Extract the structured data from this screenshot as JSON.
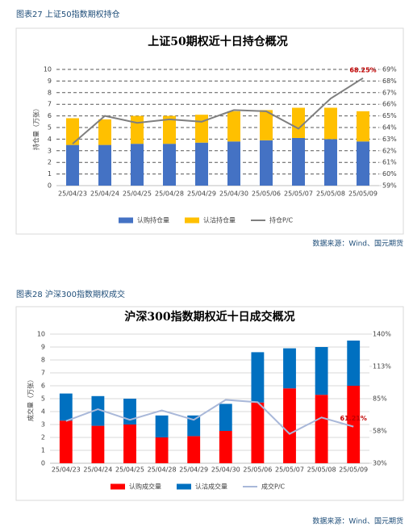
{
  "chart_data": [
    {
      "type": "bar",
      "stacked": true,
      "caption": "图表27 上证50指数期权持仓",
      "title": "上证50期权近十日持仓概况",
      "y_label": "持仓量（万张）",
      "source": "数据来源：Wind、国元期货",
      "categories": [
        "25/04/23",
        "25/04/24",
        "25/04/25",
        "25/04/28",
        "25/04/29",
        "25/04/30",
        "25/05/06",
        "25/05/07",
        "25/05/08",
        "25/05/09"
      ],
      "series": [
        {
          "name": "认购持仓量",
          "color": "#4472c4",
          "values": [
            3.5,
            3.5,
            3.6,
            3.6,
            3.7,
            3.8,
            3.9,
            4.1,
            4.0,
            3.8
          ]
        },
        {
          "name": "认沽持仓量",
          "color": "#ffc000",
          "values": [
            2.3,
            2.2,
            2.4,
            2.4,
            2.4,
            2.6,
            2.6,
            2.6,
            2.7,
            2.6
          ]
        },
        {
          "name": "持仓P/C",
          "color": "#7f7f7f",
          "type": "line",
          "axis": "y2",
          "values": [
            62.6,
            65.0,
            64.4,
            64.7,
            64.5,
            65.5,
            65.4,
            63.9,
            66.5,
            68.25
          ],
          "value_labels": [
            null,
            null,
            null,
            null,
            null,
            null,
            null,
            null,
            null,
            "68.25%"
          ]
        }
      ],
      "ylim": [
        0,
        10
      ],
      "yticks": [
        0,
        1,
        2,
        3,
        4,
        5,
        6,
        7,
        8,
        9,
        10
      ],
      "y2lim": [
        59,
        69
      ],
      "y2ticks": [
        {
          "value": 59,
          "label": "59%"
        },
        {
          "value": 60,
          "label": "60%"
        },
        {
          "value": 61,
          "label": "61%"
        },
        {
          "value": 62,
          "label": "62%"
        },
        {
          "value": 63,
          "label": "63%"
        },
        {
          "value": 64,
          "label": "64%"
        },
        {
          "value": 65,
          "label": "65%"
        },
        {
          "value": 66,
          "label": "66%"
        },
        {
          "value": 67,
          "label": "67%"
        },
        {
          "value": 68,
          "label": "68%"
        },
        {
          "value": 69,
          "label": "69%"
        }
      ],
      "grid": true,
      "legend": "bottom"
    },
    {
      "type": "bar",
      "stacked": true,
      "caption": "图表28 沪深300指数期权成交",
      "title": "沪深300指数期权近十日成交概况",
      "y_label": "成交量（万张）",
      "source": "数据来源：Wind、国元期货",
      "categories": [
        "25/04/23",
        "25/04/24",
        "25/04/25",
        "25/04/28",
        "25/04/29",
        "25/04/30",
        "25/05/06",
        "25/05/07",
        "25/05/08",
        "25/05/09"
      ],
      "series": [
        {
          "name": "认购成交量",
          "color": "#ff0000",
          "values": [
            3.3,
            2.9,
            3.0,
            2.0,
            2.1,
            2.5,
            4.7,
            5.8,
            5.3,
            6.0
          ]
        },
        {
          "name": "认沽成交量",
          "color": "#0070c0",
          "values": [
            2.1,
            2.3,
            2.0,
            1.7,
            1.6,
            2.1,
            3.9,
            3.1,
            3.7,
            3.5
          ]
        },
        {
          "name": "成交P/C",
          "color": "#a9b8d9",
          "type": "line",
          "axis": "y2",
          "values": [
            66,
            76,
            67,
            75,
            67,
            84,
            82,
            55,
            69,
            61.21
          ],
          "value_labels": [
            null,
            null,
            null,
            null,
            null,
            null,
            null,
            null,
            null,
            "61.21%"
          ]
        }
      ],
      "ylim": [
        0,
        10
      ],
      "yticks": [
        0,
        1,
        2,
        3,
        4,
        5,
        6,
        7,
        8,
        9,
        10
      ],
      "y2lim": [
        30,
        140
      ],
      "y2ticks": [
        {
          "value": 30,
          "label": "30%"
        },
        {
          "value": 57.5,
          "label": "58%"
        },
        {
          "value": 85,
          "label": "85%"
        },
        {
          "value": 112.5,
          "label": "113%"
        },
        {
          "value": 140,
          "label": "140%"
        }
      ],
      "grid": true,
      "legend": "bottom"
    }
  ]
}
